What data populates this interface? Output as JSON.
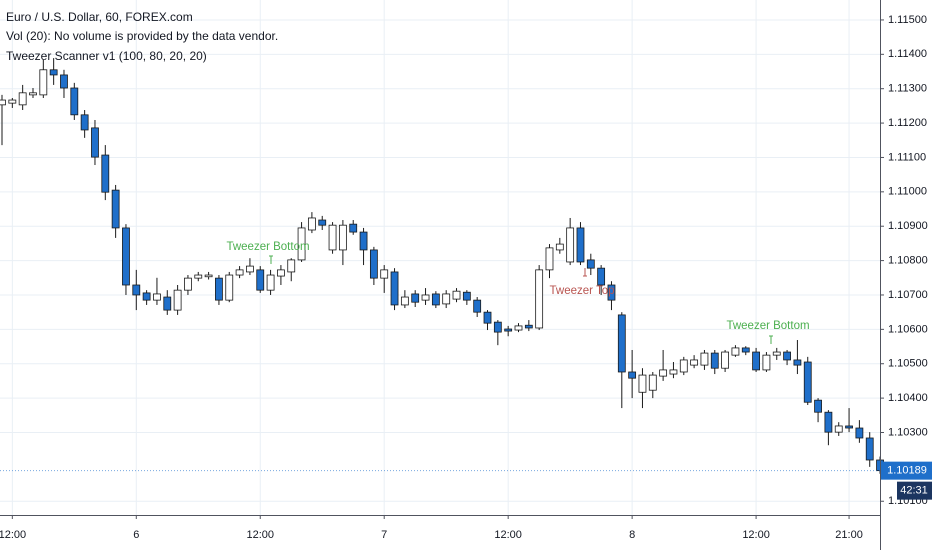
{
  "chart_data": {
    "type": "candlestick",
    "title": "Euro / U.S. Dollar, 60, FOREX.com",
    "subtitle": "Vol (20): No volume is provided by the data vendor.",
    "indicator": "Tweezer Scanner v1 (100, 80, 20, 20)",
    "up_color": "#ffffff",
    "down_color": "#1f6fca",
    "border_color": "#1a1a1a",
    "grid": true,
    "categories": [
      null,
      "12:00",
      null,
      null,
      null,
      null,
      null,
      null,
      null,
      null,
      null,
      null,
      null,
      "6",
      null,
      null,
      null,
      null,
      null,
      null,
      null,
      null,
      null,
      null,
      null,
      "12:00",
      null,
      null,
      null,
      null,
      null,
      null,
      null,
      null,
      null,
      null,
      null,
      "7",
      null,
      null,
      null,
      null,
      null,
      null,
      null,
      null,
      null,
      null,
      null,
      "12:00",
      null,
      null,
      null,
      null,
      null,
      null,
      null,
      null,
      null,
      null,
      null,
      "8",
      null,
      null,
      null,
      null,
      null,
      null,
      null,
      null,
      null,
      null,
      null,
      "12:00",
      null,
      null,
      null,
      null,
      null,
      null,
      null,
      null,
      "21:00",
      null,
      null,
      null
    ],
    "open": [
      1.11253,
      1.11258,
      1.11253,
      1.11282,
      1.11282,
      1.11355,
      1.1134,
      1.11302,
      1.11224,
      1.11186,
      1.11107,
      1.11005,
      1.10895,
      1.10729,
      1.10706,
      1.10685,
      1.10694,
      1.10656,
      1.10714,
      1.10749,
      1.10753,
      1.10749,
      1.10685,
      1.10758,
      1.10767,
      1.10773,
      1.10714,
      1.10755,
      1.10767,
      1.10802,
      1.10889,
      1.10918,
      1.10831,
      1.10831,
      1.10906,
      1.10883,
      1.10831,
      1.10749,
      1.10767,
      1.10671,
      1.10703,
      1.10685,
      1.10703,
      1.10674,
      1.10688,
      1.10708,
      1.10685,
      1.1065,
      1.10621,
      1.10601,
      1.10598,
      1.10612,
      1.10604,
      1.10773,
      1.10831,
      1.10796,
      1.10895,
      1.10802,
      1.10778,
      1.10729,
      1.10642,
      1.10476,
      1.10417,
      1.10423,
      1.10464,
      1.1047,
      1.10476,
      1.10496,
      1.10496,
      1.10531,
      1.10487,
      1.10525,
      1.10546,
      1.10534,
      1.10482,
      1.10525,
      1.10534,
      1.10511,
      1.10505,
      1.10394,
      1.10359,
      1.10301,
      1.10319,
      1.10313,
      1.10284,
      1.1022
    ],
    "high": [
      1.11282,
      1.11273,
      1.11311,
      1.11302,
      1.11384,
      1.11389,
      1.11355,
      1.11317,
      1.11238,
      1.11209,
      1.11136,
      1.1102,
      1.10906,
      1.10773,
      1.10714,
      1.1075,
      1.10714,
      1.10729,
      1.10758,
      1.10767,
      1.10767,
      1.10758,
      1.10767,
      1.10784,
      1.10807,
      1.10784,
      1.10773,
      1.10787,
      1.10807,
      1.10912,
      1.10941,
      1.1093,
      1.10912,
      1.10918,
      1.10918,
      1.10895,
      1.1084,
      1.10787,
      1.10778,
      1.10714,
      1.10714,
      1.1072,
      1.10711,
      1.10714,
      1.1072,
      1.10714,
      1.10694,
      1.10656,
      1.10627,
      1.1061,
      1.10618,
      1.10627,
      1.10787,
      1.10848,
      1.10866,
      1.10924,
      1.10912,
      1.1082,
      1.10787,
      1.1074,
      1.1065,
      1.1054,
      1.10487,
      1.10476,
      1.1054,
      1.10505,
      1.1052,
      1.10525,
      1.1054,
      1.1054,
      1.1054,
      1.10554,
      1.10551,
      1.10546,
      1.10534,
      1.10546,
      1.1054,
      1.10569,
      1.1052,
      1.104,
      1.10365,
      1.1033,
      1.10371,
      1.10336,
      1.10301,
      1.1023
    ],
    "low": [
      1.11136,
      1.11244,
      1.11238,
      1.11273,
      1.11273,
      1.11311,
      1.11273,
      1.11209,
      1.11157,
      1.11078,
      1.10976,
      1.10866,
      1.107,
      1.10656,
      1.10671,
      1.10671,
      1.10642,
      1.10642,
      1.107,
      1.1074,
      1.10745,
      1.10671,
      1.10679,
      1.10749,
      1.10758,
      1.10706,
      1.107,
      1.10729,
      1.1074,
      1.10796,
      1.1088,
      1.10889,
      1.1082,
      1.10787,
      1.10875,
      1.10787,
      1.10729,
      1.10706,
      1.10656,
      1.10662,
      1.10665,
      1.10671,
      1.10662,
      1.10662,
      1.10679,
      1.10671,
      1.10636,
      1.10598,
      1.10554,
      1.1058,
      1.10592,
      1.10595,
      1.10598,
      1.10749,
      1.1082,
      1.10787,
      1.10787,
      1.10758,
      1.107,
      1.10656,
      1.10371,
      1.104,
      1.10371,
      1.104,
      1.1045,
      1.10458,
      1.10467,
      1.10487,
      1.10482,
      1.1047,
      1.10476,
      1.1052,
      1.10525,
      1.10476,
      1.10476,
      1.10511,
      1.10496,
      1.1047,
      1.1038,
      1.1033,
      1.10263,
      1.1029,
      1.10301,
      1.1027,
      1.102,
      1.1018
    ],
    "close": [
      1.11267,
      1.11267,
      1.11288,
      1.11288,
      1.11355,
      1.1134,
      1.11302,
      1.11224,
      1.1118,
      1.11101,
      1.10999,
      1.10895,
      1.10729,
      1.107,
      1.10685,
      1.10703,
      1.10656,
      1.10714,
      1.10749,
      1.10758,
      1.10758,
      1.10685,
      1.10758,
      1.10773,
      1.10784,
      1.10714,
      1.10758,
      1.10773,
      1.10802,
      1.10895,
      1.10924,
      1.10903,
      1.10903,
      1.10903,
      1.10883,
      1.10831,
      1.10749,
      1.10773,
      1.10671,
      1.10694,
      1.10679,
      1.107,
      1.10671,
      1.10703,
      1.10711,
      1.10685,
      1.1065,
      1.10618,
      1.10592,
      1.10595,
      1.1061,
      1.10604,
      1.10773,
      1.10837,
      1.10848,
      1.10895,
      1.10796,
      1.10778,
      1.10729,
      1.10685,
      1.10476,
      1.10458,
      1.10467,
      1.10467,
      1.10482,
      1.10482,
      1.10511,
      1.10511,
      1.10531,
      1.10487,
      1.10534,
      1.10546,
      1.10534,
      1.10482,
      1.10525,
      1.10534,
      1.10511,
      1.10496,
      1.10388,
      1.10359,
      1.10301,
      1.10319,
      1.10313,
      1.10284,
      1.1022,
      1.10189
    ],
    "ylim": [
      1.1006,
      1.11558
    ],
    "yticks": [
      {
        "value": 1.115,
        "label": "1.11500"
      },
      {
        "value": 1.114,
        "label": "1.11400"
      },
      {
        "value": 1.113,
        "label": "1.11300"
      },
      {
        "value": 1.112,
        "label": "1.11200"
      },
      {
        "value": 1.111,
        "label": "1.11100"
      },
      {
        "value": 1.11,
        "label": "1.11000"
      },
      {
        "value": 1.109,
        "label": "1.10900"
      },
      {
        "value": 1.108,
        "label": "1.10800"
      },
      {
        "value": 1.107,
        "label": "1.10700"
      },
      {
        "value": 1.106,
        "label": "1.10600"
      },
      {
        "value": 1.105,
        "label": "1.10500"
      },
      {
        "value": 1.104,
        "label": "1.10400"
      },
      {
        "value": 1.103,
        "label": "1.10300"
      },
      {
        "value": 1.101,
        "label": "1.10100"
      }
    ],
    "last_price": 1.10189,
    "countdown": "42:31",
    "annotations": [
      {
        "text": "Tweezer Bottom",
        "color": "#4caf50"
      },
      {
        "text": "Tweezer Top",
        "color": "#b85450"
      },
      {
        "text": "Tweezer Bottom",
        "color": "#4caf50"
      }
    ]
  }
}
